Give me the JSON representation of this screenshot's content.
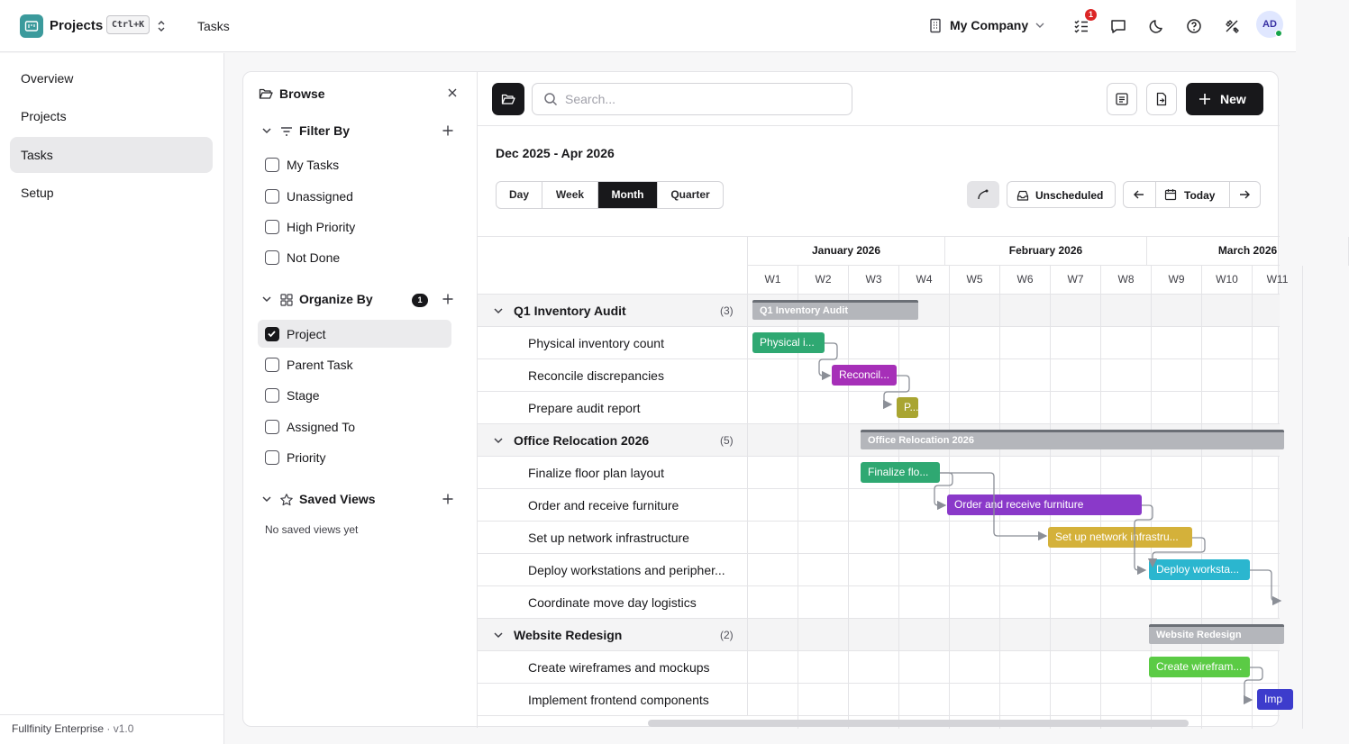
{
  "topbar": {
    "app_name": "Projects",
    "shortcut": "Ctrl+K",
    "breadcrumb": "Tasks",
    "company": "My Company",
    "notification_count": "1",
    "avatar_initials": "AD"
  },
  "sidebar": {
    "items": [
      {
        "label": "Overview",
        "active": false
      },
      {
        "label": "Projects",
        "active": false
      },
      {
        "label": "Tasks",
        "active": true
      },
      {
        "label": "Setup",
        "active": false
      }
    ],
    "footer_name": "Fullfinity Enterprise",
    "footer_version": " · v1.0"
  },
  "browse": {
    "title": "Browse",
    "filter": {
      "label": "Filter By",
      "options": [
        {
          "label": "My Tasks",
          "checked": false
        },
        {
          "label": "Unassigned",
          "checked": false
        },
        {
          "label": "High Priority",
          "checked": false
        },
        {
          "label": "Not Done",
          "checked": false
        }
      ]
    },
    "organize": {
      "label": "Organize By",
      "count": "1",
      "options": [
        {
          "label": "Project",
          "checked": true
        },
        {
          "label": "Parent Task",
          "checked": false
        },
        {
          "label": "Stage",
          "checked": false
        },
        {
          "label": "Assigned To",
          "checked": false
        },
        {
          "label": "Priority",
          "checked": false
        }
      ]
    },
    "saved": {
      "label": "Saved Views",
      "empty": "No saved views yet"
    }
  },
  "toolbar": {
    "search_placeholder": "Search...",
    "new_label": "New"
  },
  "gantt": {
    "range_label": "Dec 2025 - Apr 2026",
    "views": [
      {
        "label": "Day",
        "active": false
      },
      {
        "label": "Week",
        "active": false
      },
      {
        "label": "Month",
        "active": true
      },
      {
        "label": "Quarter",
        "active": false
      }
    ],
    "unscheduled_label": "Unscheduled",
    "today_label": "Today",
    "months": [
      "January 2026",
      "February 2026",
      "March 2026"
    ],
    "weeks": [
      "W1",
      "W2",
      "W3",
      "W4",
      "W5",
      "W6",
      "W7",
      "W8",
      "W9",
      "W10",
      "W11"
    ],
    "groups": [
      {
        "name": "Q1 Inventory Audit",
        "count": "(3)",
        "tasks": [
          {
            "name": "Physical inventory count",
            "bar_label": "Physical i...",
            "color": "#2fa872"
          },
          {
            "name": "Reconcile discrepancies",
            "bar_label": "Reconcil...",
            "color": "#a62fb8"
          },
          {
            "name": "Prepare audit report",
            "bar_label": "P...",
            "color": "#a9a531"
          }
        ]
      },
      {
        "name": "Office Relocation 2026",
        "count": "(5)",
        "tasks": [
          {
            "name": "Finalize floor plan layout",
            "bar_label": "Finalize flo...",
            "color": "#2fa872"
          },
          {
            "name": "Order and receive furniture",
            "bar_label": "Order and receive furniture",
            "color": "#8a39c9"
          },
          {
            "name": "Set up network infrastructure",
            "bar_label": "Set up network infrastru...",
            "color": "#d4b13a"
          },
          {
            "name": "Deploy workstations and peripher...",
            "bar_label": "Deploy worksta...",
            "color": "#2bb6cf"
          },
          {
            "name": "Coordinate move day logistics",
            "bar_label": "",
            "color": "#9ca3af"
          }
        ]
      },
      {
        "name": "Website Redesign",
        "count": "(2)",
        "tasks": [
          {
            "name": "Create wireframes and mockups",
            "bar_label": "Create wirefram...",
            "color": "#5bcb45"
          },
          {
            "name": "Implement frontend components",
            "bar_label": "Imp",
            "color": "#3d3ccc"
          }
        ]
      }
    ]
  }
}
